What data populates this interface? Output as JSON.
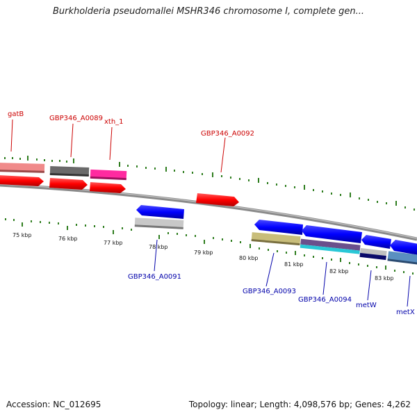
{
  "title": "Burkholderia pseudomallei MSHR346 chromosome I, complete gen...",
  "footer": {
    "accession": "Accession: NC_012695",
    "topology": "Topology: linear; Length: 4,098,576 bp; Genes: 4,262"
  },
  "colors": {
    "forward_label": "#cc0000",
    "reverse_label": "#0000aa",
    "tick": "#2e7d1e",
    "backbone": "#8a8a8a"
  },
  "scale_labels": [
    "75 kbp",
    "76 kbp",
    "77 kbp",
    "78 kbp",
    "79 kbp",
    "80 kbp",
    "81 kbp",
    "82 kbp",
    "83 kbp"
  ],
  "forward_labels": [
    "gatB",
    "GBP346_A0089",
    "xth_1",
    "GBP346_A0092"
  ],
  "reverse_labels": [
    "GBP346_A0091",
    "GBP346_A0093",
    "GBP346_A0094",
    "metW",
    "metX"
  ]
}
